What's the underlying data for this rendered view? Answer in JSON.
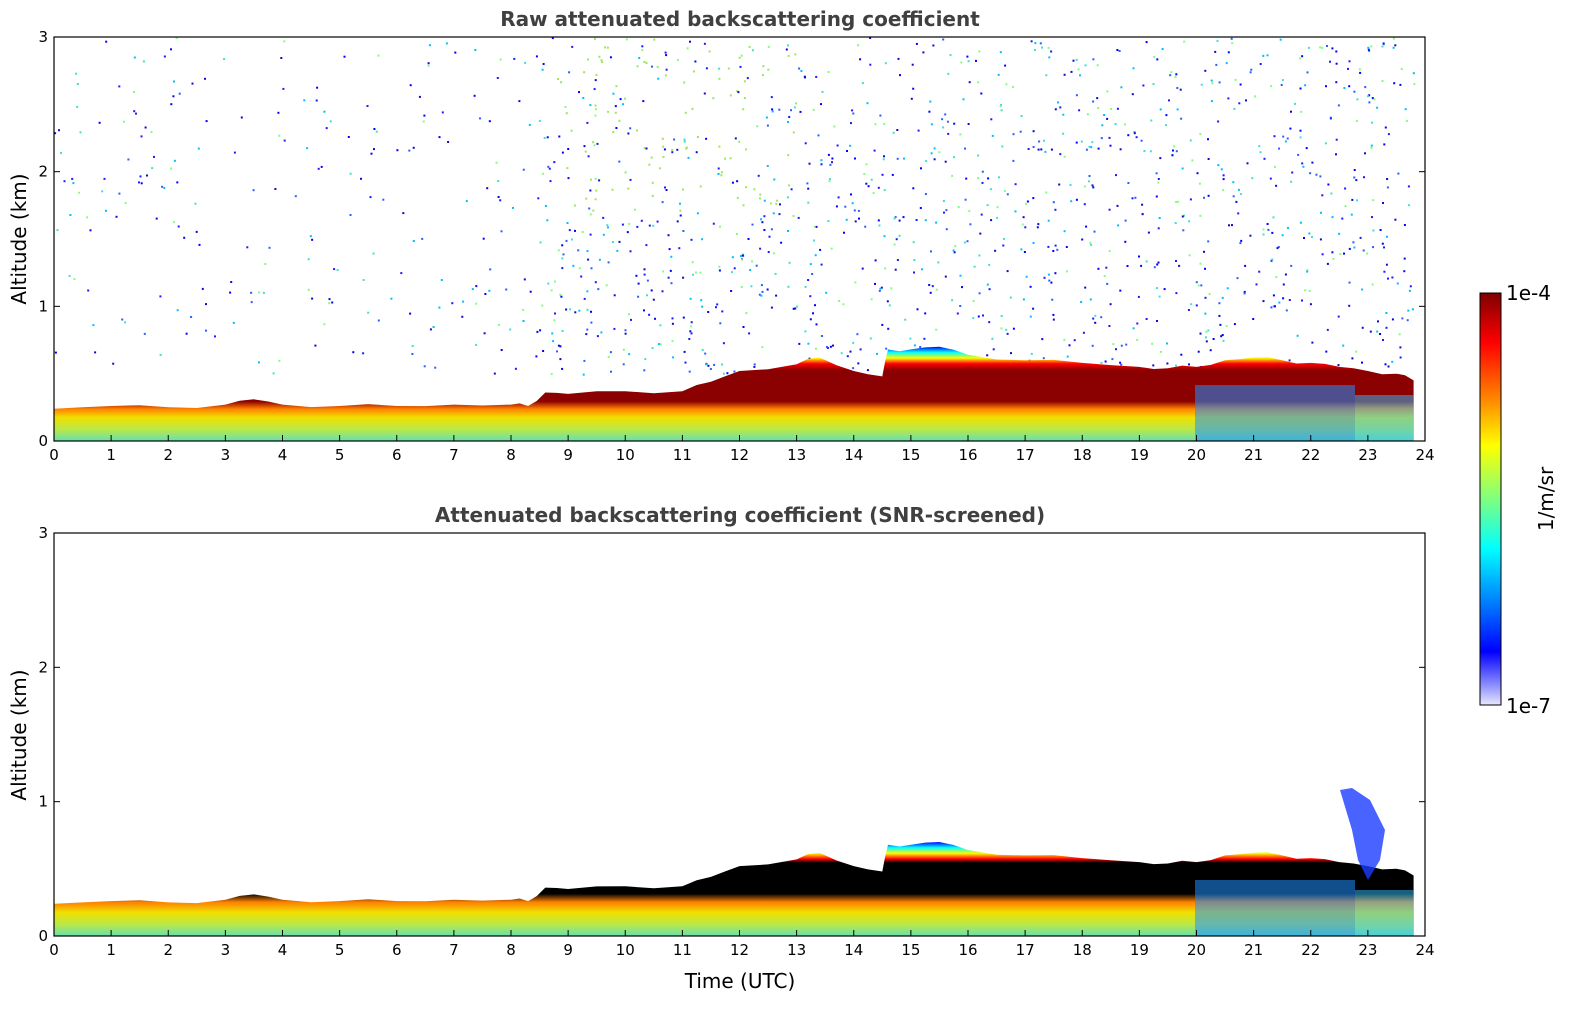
{
  "chart_data": [
    {
      "type": "heatmap",
      "title": "Raw attenuated backscattering coefficient",
      "xlabel": "",
      "ylabel": "Altitude (km)",
      "xlim": [
        0,
        24
      ],
      "ylim": [
        0,
        3
      ],
      "xticks": [
        "0",
        "1",
        "2",
        "3",
        "4",
        "5",
        "6",
        "7",
        "8",
        "9",
        "10",
        "11",
        "12",
        "13",
        "14",
        "15",
        "16",
        "17",
        "18",
        "19",
        "20",
        "21",
        "22",
        "23",
        "24"
      ],
      "yticks": [
        "0",
        "1",
        "2",
        "3"
      ],
      "layer_top_km": {
        "x": [
          0,
          1,
          2,
          3,
          3.5,
          4,
          5,
          6,
          7,
          8,
          8.3,
          8.6,
          9,
          10,
          11,
          11.5,
          12,
          13,
          13.4,
          14,
          14.5,
          14.6,
          15,
          15.5,
          16,
          17,
          18,
          19,
          19.5,
          20,
          20.5,
          21,
          21.5,
          22,
          22.5,
          23,
          23.5,
          23.8
        ],
        "y": [
          0.24,
          0.26,
          0.25,
          0.27,
          0.31,
          0.27,
          0.26,
          0.26,
          0.27,
          0.27,
          0.26,
          0.36,
          0.35,
          0.37,
          0.37,
          0.44,
          0.52,
          0.57,
          0.62,
          0.52,
          0.48,
          0.68,
          0.68,
          0.7,
          0.64,
          0.6,
          0.58,
          0.55,
          0.54,
          0.55,
          0.6,
          0.62,
          0.6,
          0.58,
          0.55,
          0.52,
          0.5,
          0.45
        ]
      },
      "noise": "scattered speckle above the boundary layer, denser after 8.5 UTC"
    },
    {
      "type": "heatmap",
      "title": "Attenuated backscattering coefficient (SNR-screened)",
      "xlabel": "Time (UTC)",
      "ylabel": "Altitude (km)",
      "xlim": [
        0,
        24
      ],
      "ylim": [
        0,
        3
      ],
      "xticks": [
        "0",
        "1",
        "2",
        "3",
        "4",
        "5",
        "6",
        "7",
        "8",
        "9",
        "10",
        "11",
        "12",
        "13",
        "14",
        "15",
        "16",
        "17",
        "18",
        "19",
        "20",
        "21",
        "22",
        "23",
        "24"
      ],
      "yticks": [
        "0",
        "1",
        "2",
        "3"
      ],
      "noise": "screened; only the boundary layer signal remains"
    }
  ],
  "colorbar": {
    "label": "1/m/sr",
    "max_label": "1e-4",
    "min_label": "1e-7",
    "colormap": "jet"
  }
}
